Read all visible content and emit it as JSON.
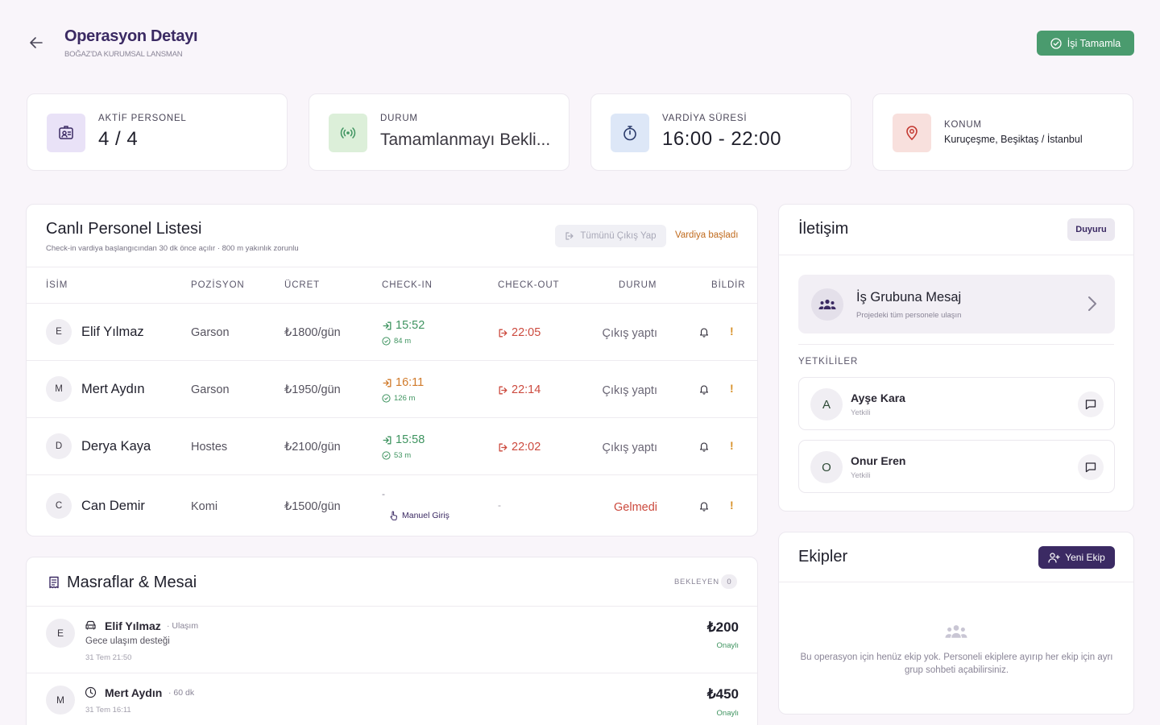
{
  "header": {
    "title": "Operasyon Detayı",
    "subtitle": "BOĞAZ'DA KURUMSAL LANSMAN",
    "complete_label": "İşi Tamamla"
  },
  "stats": [
    {
      "label": "AKTİF PERSONEL",
      "value": "4 / 4",
      "icon": "badge-icon",
      "color": "#e9e2f7"
    },
    {
      "label": "DURUM",
      "value": "Tamamlanmayı Bekli...",
      "icon": "broadcast-icon",
      "color": "#dcefd9"
    },
    {
      "label": "VARDİYA SÜRESİ",
      "value": "16:00 - 22:00",
      "icon": "stopwatch-icon",
      "color": "#dde7f7"
    },
    {
      "label": "KONUM",
      "value": "Kuruçeşme, Beşiktaş / İstanbul",
      "icon": "map-pin-icon",
      "color": "#f8e0dd"
    }
  ],
  "personnel": {
    "title": "Canlı Personel Listesi",
    "subtitle": "Check-in vardiya başlangıcından 30 dk önce açılır · 800 m yakınlık zorunlu",
    "checkout_all_label": "Tümünü Çıkış Yap",
    "shift_status": "Vardiya başladı",
    "columns": [
      "İSİM",
      "POZİSYON",
      "ÜCRET",
      "CHECK-IN",
      "CHECK-OUT",
      "DURUM",
      "BİLDİR"
    ],
    "rows": [
      {
        "initial": "E",
        "name": "Elif Yılmaz",
        "position": "Garson",
        "wage": "₺1800/gün",
        "checkin": "15:52",
        "checkin_color": "#3f9460",
        "distance": "84 m",
        "checkout": "22:05",
        "status": "Çıkış yaptı",
        "status_color": "#6a6675",
        "excl": "!"
      },
      {
        "initial": "M",
        "name": "Mert Aydın",
        "position": "Garson",
        "wage": "₺1950/gün",
        "checkin": "16:11",
        "checkin_color": "#d07a2a",
        "distance": "126 m",
        "checkout": "22:14",
        "status": "Çıkış yaptı",
        "status_color": "#6a6675",
        "excl": "!"
      },
      {
        "initial": "D",
        "name": "Derya Kaya",
        "position": "Hostes",
        "wage": "₺2100/gün",
        "checkin": "15:58",
        "checkin_color": "#3f9460",
        "distance": "53 m",
        "checkout": "22:02",
        "status": "Çıkış yaptı",
        "status_color": "#6a6675",
        "excl": "!"
      },
      {
        "initial": "C",
        "name": "Can Demir",
        "position": "Komi",
        "wage": "₺1500/gün",
        "checkin": "-",
        "manual_label": "Manuel Giriş",
        "checkout": "-",
        "status": "Gelmedi",
        "status_color": "#cc4a3e",
        "excl": "!"
      }
    ]
  },
  "expenses": {
    "title": "Masraflar & Mesai",
    "pending_label": "BEKLEYEN",
    "pending_count": "0",
    "items": [
      {
        "initial": "E",
        "name": "Elif Yılmaz",
        "type": "· Ulaşım",
        "description": "Gece ulaşım desteği",
        "date": "31 Tem 21:50",
        "amount": "₺200",
        "status": "Onaylı",
        "icon": "car-icon"
      },
      {
        "initial": "M",
        "name": "Mert Aydın",
        "type": "· 60 dk",
        "description": "",
        "date": "31 Tem 16:11",
        "amount": "₺450",
        "status": "Onaylı",
        "icon": "clock-icon"
      }
    ]
  },
  "contact": {
    "title": "İletişim",
    "announce_label": "Duyuru",
    "group_title": "İş Grubuna Mesaj",
    "group_subtitle": "Projedeki tüm personele ulaşın",
    "authorized_label": "YETKİLİLER",
    "people": [
      {
        "initial": "A",
        "name": "Ayşe Kara",
        "role": "Yetkili"
      },
      {
        "initial": "O",
        "name": "Onur Eren",
        "role": "Yetkili"
      }
    ]
  },
  "teams": {
    "title": "Ekipler",
    "new_team_label": "Yeni Ekip",
    "empty_text": "Bu operasyon için henüz ekip yok. Personeli ekiplere ayırıp her ekip için ayrı grup sohbeti açabilirsiniz."
  }
}
